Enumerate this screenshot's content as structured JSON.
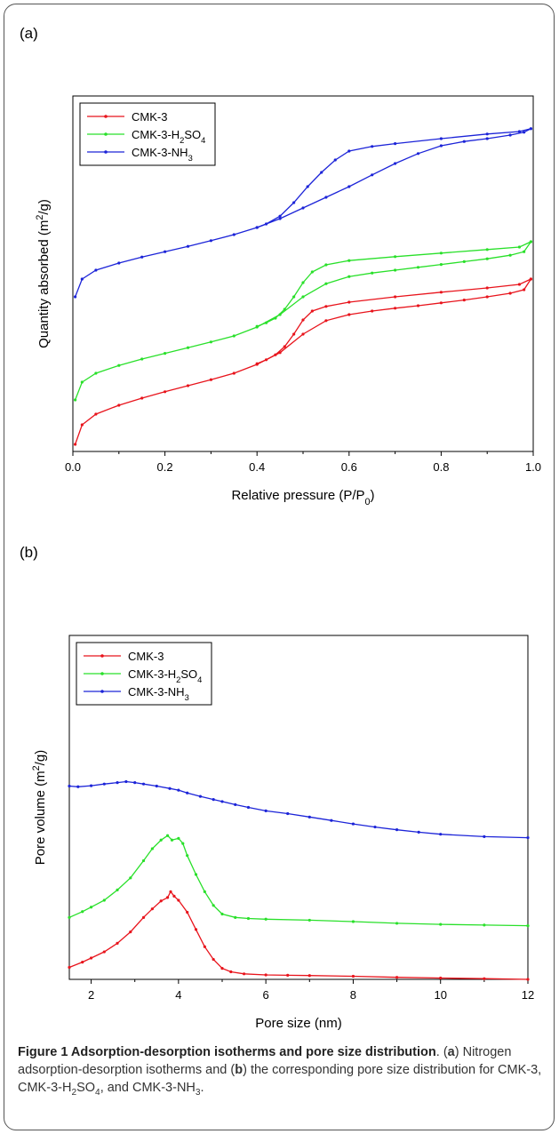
{
  "panels": [
    {
      "label": "(a)",
      "chart_data": {
        "type": "line",
        "xlabel": "Relative pressure (P/P0)",
        "ylabel": "Quantity absorbed (m2/g)",
        "xlim": [
          0,
          1.0
        ],
        "xticks": [
          "0.0",
          "0.2",
          "0.4",
          "0.6",
          "0.8",
          "1.0"
        ],
        "ylim": [
          0,
          10
        ],
        "ytick_labels": false,
        "legend": "top-left",
        "grid": false,
        "series": [
          {
            "name": "CMK-3",
            "color": "#e8141c",
            "adsorption": [
              [
                0.005,
                0.2
              ],
              [
                0.02,
                0.75
              ],
              [
                0.05,
                1.05
              ],
              [
                0.1,
                1.3
              ],
              [
                0.15,
                1.5
              ],
              [
                0.2,
                1.68
              ],
              [
                0.25,
                1.85
              ],
              [
                0.3,
                2.02
              ],
              [
                0.35,
                2.2
              ],
              [
                0.4,
                2.45
              ],
              [
                0.45,
                2.78
              ],
              [
                0.5,
                3.3
              ],
              [
                0.55,
                3.68
              ],
              [
                0.6,
                3.85
              ],
              [
                0.65,
                3.95
              ],
              [
                0.7,
                4.03
              ],
              [
                0.75,
                4.1
              ],
              [
                0.8,
                4.18
              ],
              [
                0.85,
                4.26
              ],
              [
                0.9,
                4.35
              ],
              [
                0.95,
                4.45
              ],
              [
                0.98,
                4.55
              ],
              [
                0.995,
                4.85
              ]
            ],
            "desorption": [
              [
                0.995,
                4.85
              ],
              [
                0.97,
                4.7
              ],
              [
                0.9,
                4.6
              ],
              [
                0.8,
                4.48
              ],
              [
                0.7,
                4.35
              ],
              [
                0.6,
                4.2
              ],
              [
                0.55,
                4.08
              ],
              [
                0.52,
                3.95
              ],
              [
                0.5,
                3.7
              ],
              [
                0.48,
                3.3
              ],
              [
                0.46,
                2.95
              ],
              [
                0.44,
                2.72
              ],
              [
                0.42,
                2.58
              ],
              [
                0.4,
                2.47
              ]
            ]
          },
          {
            "name": "CMK-3-H2SO4",
            "color": "#29e02a",
            "adsorption": [
              [
                0.005,
                1.45
              ],
              [
                0.02,
                1.95
              ],
              [
                0.05,
                2.2
              ],
              [
                0.1,
                2.42
              ],
              [
                0.15,
                2.6
              ],
              [
                0.2,
                2.76
              ],
              [
                0.25,
                2.92
              ],
              [
                0.3,
                3.08
              ],
              [
                0.35,
                3.25
              ],
              [
                0.4,
                3.5
              ],
              [
                0.45,
                3.85
              ],
              [
                0.5,
                4.35
              ],
              [
                0.55,
                4.72
              ],
              [
                0.6,
                4.92
              ],
              [
                0.65,
                5.02
              ],
              [
                0.7,
                5.1
              ],
              [
                0.75,
                5.18
              ],
              [
                0.8,
                5.26
              ],
              [
                0.85,
                5.34
              ],
              [
                0.9,
                5.42
              ],
              [
                0.95,
                5.52
              ],
              [
                0.98,
                5.62
              ],
              [
                0.995,
                5.9
              ]
            ],
            "desorption": [
              [
                0.995,
                5.9
              ],
              [
                0.97,
                5.75
              ],
              [
                0.9,
                5.68
              ],
              [
                0.8,
                5.58
              ],
              [
                0.7,
                5.48
              ],
              [
                0.6,
                5.37
              ],
              [
                0.55,
                5.25
              ],
              [
                0.52,
                5.05
              ],
              [
                0.5,
                4.75
              ],
              [
                0.48,
                4.35
              ],
              [
                0.46,
                4.0
              ],
              [
                0.44,
                3.75
              ],
              [
                0.42,
                3.62
              ],
              [
                0.4,
                3.52
              ]
            ]
          },
          {
            "name": "CMK-3-NH3",
            "color": "#1c24d8",
            "adsorption": [
              [
                0.005,
                4.35
              ],
              [
                0.02,
                4.85
              ],
              [
                0.05,
                5.1
              ],
              [
                0.1,
                5.3
              ],
              [
                0.15,
                5.47
              ],
              [
                0.2,
                5.62
              ],
              [
                0.25,
                5.77
              ],
              [
                0.3,
                5.93
              ],
              [
                0.35,
                6.1
              ],
              [
                0.4,
                6.3
              ],
              [
                0.45,
                6.55
              ],
              [
                0.5,
                6.85
              ],
              [
                0.55,
                7.15
              ],
              [
                0.6,
                7.45
              ],
              [
                0.65,
                7.78
              ],
              [
                0.7,
                8.1
              ],
              [
                0.75,
                8.38
              ],
              [
                0.8,
                8.6
              ],
              [
                0.85,
                8.72
              ],
              [
                0.9,
                8.8
              ],
              [
                0.95,
                8.9
              ],
              [
                0.98,
                8.98
              ],
              [
                0.995,
                9.08
              ]
            ],
            "desorption": [
              [
                0.995,
                9.08
              ],
              [
                0.97,
                9.0
              ],
              [
                0.9,
                8.93
              ],
              [
                0.8,
                8.8
              ],
              [
                0.7,
                8.66
              ],
              [
                0.65,
                8.58
              ],
              [
                0.6,
                8.45
              ],
              [
                0.57,
                8.2
              ],
              [
                0.54,
                7.85
              ],
              [
                0.51,
                7.45
              ],
              [
                0.48,
                7.0
              ],
              [
                0.45,
                6.62
              ],
              [
                0.42,
                6.4
              ],
              [
                0.4,
                6.3
              ]
            ]
          }
        ]
      }
    },
    {
      "label": "(b)",
      "chart_data": {
        "type": "line",
        "xlabel": "Pore size (nm)",
        "ylabel": "Pore volume (m2/g)",
        "xlim": [
          1.5,
          12
        ],
        "xticks": [
          "2",
          "4",
          "6",
          "8",
          "10",
          "12"
        ],
        "ylim": [
          0,
          10
        ],
        "ytick_labels": false,
        "legend": "top-left",
        "grid": false,
        "series": [
          {
            "name": "CMK-3",
            "color": "#e8141c",
            "points": [
              [
                1.5,
                0.35
              ],
              [
                1.8,
                0.5
              ],
              [
                2.0,
                0.62
              ],
              [
                2.3,
                0.8
              ],
              [
                2.6,
                1.05
              ],
              [
                2.9,
                1.38
              ],
              [
                3.2,
                1.8
              ],
              [
                3.4,
                2.05
              ],
              [
                3.6,
                2.28
              ],
              [
                3.75,
                2.38
              ],
              [
                3.82,
                2.55
              ],
              [
                3.9,
                2.42
              ],
              [
                4.0,
                2.3
              ],
              [
                4.2,
                1.95
              ],
              [
                4.4,
                1.45
              ],
              [
                4.6,
                0.95
              ],
              [
                4.8,
                0.58
              ],
              [
                5.0,
                0.32
              ],
              [
                5.2,
                0.22
              ],
              [
                5.5,
                0.16
              ],
              [
                6.0,
                0.13
              ],
              [
                6.5,
                0.12
              ],
              [
                7.0,
                0.11
              ],
              [
                8.0,
                0.09
              ],
              [
                9.0,
                0.06
              ],
              [
                10.0,
                0.04
              ],
              [
                11.0,
                0.02
              ],
              [
                12.0,
                0.0
              ]
            ]
          },
          {
            "name": "CMK-3-H2SO4",
            "color": "#29e02a",
            "points": [
              [
                1.5,
                1.8
              ],
              [
                1.8,
                1.97
              ],
              [
                2.0,
                2.1
              ],
              [
                2.3,
                2.3
              ],
              [
                2.6,
                2.6
              ],
              [
                2.9,
                2.95
              ],
              [
                3.2,
                3.45
              ],
              [
                3.4,
                3.8
              ],
              [
                3.6,
                4.05
              ],
              [
                3.75,
                4.18
              ],
              [
                3.85,
                4.05
              ],
              [
                4.0,
                4.1
              ],
              [
                4.1,
                3.95
              ],
              [
                4.2,
                3.6
              ],
              [
                4.4,
                3.05
              ],
              [
                4.6,
                2.55
              ],
              [
                4.8,
                2.15
              ],
              [
                5.0,
                1.9
              ],
              [
                5.3,
                1.8
              ],
              [
                5.6,
                1.77
              ],
              [
                6.0,
                1.75
              ],
              [
                7.0,
                1.72
              ],
              [
                8.0,
                1.68
              ],
              [
                9.0,
                1.63
              ],
              [
                10.0,
                1.6
              ],
              [
                11.0,
                1.58
              ],
              [
                12.0,
                1.56
              ]
            ]
          },
          {
            "name": "CMK-3-NH3",
            "color": "#1c24d8",
            "points": [
              [
                1.5,
                5.62
              ],
              [
                1.7,
                5.6
              ],
              [
                2.0,
                5.63
              ],
              [
                2.3,
                5.68
              ],
              [
                2.6,
                5.72
              ],
              [
                2.8,
                5.75
              ],
              [
                3.0,
                5.72
              ],
              [
                3.2,
                5.68
              ],
              [
                3.5,
                5.62
              ],
              [
                3.8,
                5.55
              ],
              [
                4.0,
                5.5
              ],
              [
                4.2,
                5.42
              ],
              [
                4.5,
                5.32
              ],
              [
                4.8,
                5.23
              ],
              [
                5.0,
                5.17
              ],
              [
                5.3,
                5.08
              ],
              [
                5.6,
                5.0
              ],
              [
                6.0,
                4.9
              ],
              [
                6.5,
                4.82
              ],
              [
                7.0,
                4.72
              ],
              [
                7.5,
                4.62
              ],
              [
                8.0,
                4.52
              ],
              [
                8.5,
                4.43
              ],
              [
                9.0,
                4.35
              ],
              [
                9.5,
                4.28
              ],
              [
                10.0,
                4.22
              ],
              [
                11.0,
                4.15
              ],
              [
                12.0,
                4.12
              ]
            ]
          }
        ]
      }
    }
  ],
  "caption": {
    "title": "Figure 1 Adsorption-desorption isotherms and pore size distribution",
    "text": ". (a) Nitrogen adsorption-desorption isotherms and (b) the corresponding pore size distribution for CMK-3, CMK-3-H2SO4, and CMK-3-NH3."
  }
}
